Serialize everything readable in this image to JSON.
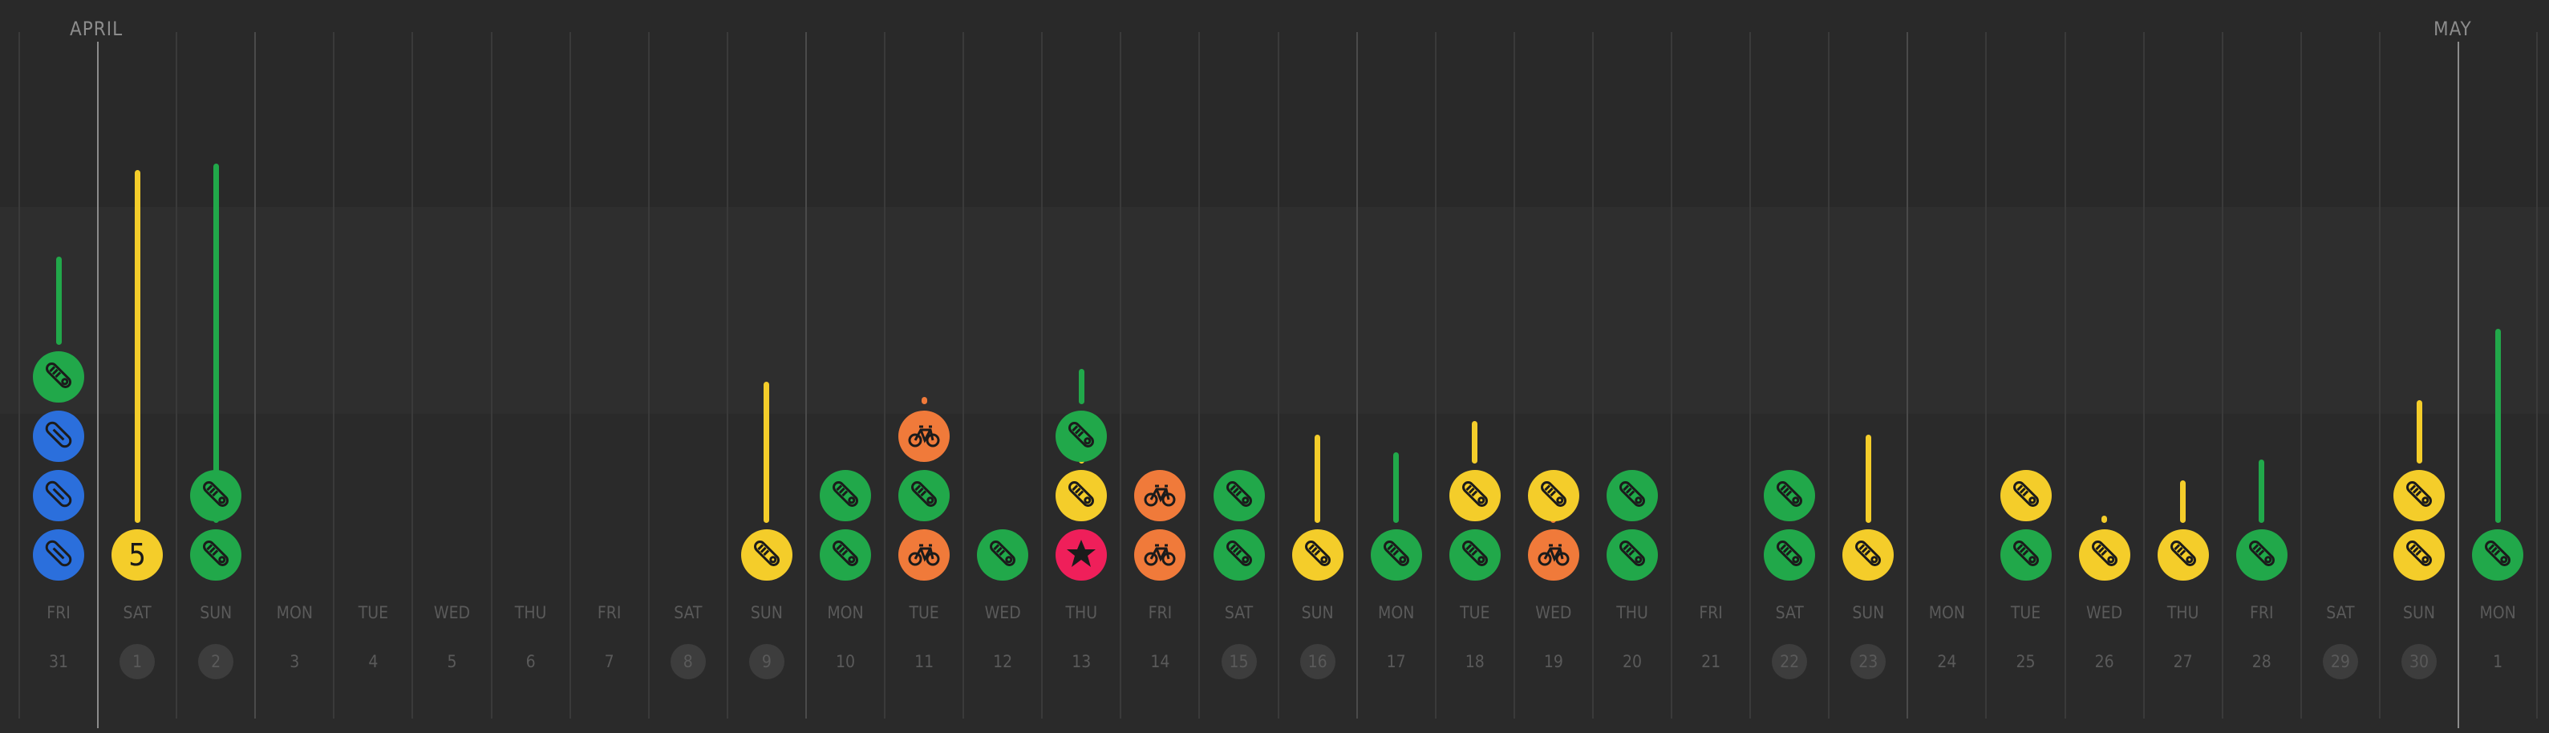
{
  "months": [
    {
      "label": "APRIL"
    },
    {
      "label": "MAY"
    }
  ],
  "colors": {
    "green": "#21a84a",
    "blue": "#2b6fdc",
    "yellow": "#f4cd2a",
    "orange": "#f07a3a",
    "red": "#ef1f5a",
    "background": "#2a2a2a",
    "icon": "#1b1b1b"
  },
  "days": [
    {
      "dow": "FRI",
      "num": "31",
      "weekend": false,
      "acts": [
        {
          "type": "shoe",
          "color": "blue"
        },
        {
          "type": "shoe",
          "color": "blue"
        },
        {
          "type": "shoe",
          "color": "blue"
        },
        {
          "type": "shoe",
          "color": "green",
          "bar": 0.25
        }
      ]
    },
    {
      "dow": "SAT",
      "num": "1",
      "weekend": true,
      "acts": [
        {
          "type": "number",
          "label": "5",
          "color": "yellow",
          "bar": 1.0
        }
      ]
    },
    {
      "dow": "SUN",
      "num": "2",
      "weekend": true,
      "acts": [
        {
          "type": "shoe",
          "color": "green",
          "bar": 0.75,
          "gap": true
        },
        {
          "type": "shoe",
          "color": "green",
          "bar": 0.85
        }
      ]
    },
    {
      "dow": "MON",
      "num": "3",
      "weekend": false,
      "acts": []
    },
    {
      "dow": "TUE",
      "num": "4",
      "weekend": false,
      "acts": []
    },
    {
      "dow": "WED",
      "num": "5",
      "weekend": false,
      "acts": []
    },
    {
      "dow": "THU",
      "num": "6",
      "weekend": false,
      "acts": []
    },
    {
      "dow": "FRI",
      "num": "7",
      "weekend": false,
      "acts": []
    },
    {
      "dow": "SAT",
      "num": "8",
      "weekend": true,
      "acts": []
    },
    {
      "dow": "SUN",
      "num": "9",
      "weekend": true,
      "acts": [
        {
          "type": "shoe",
          "color": "yellow",
          "bar": 0.4
        }
      ]
    },
    {
      "dow": "MON",
      "num": "10",
      "weekend": false,
      "acts": [
        {
          "type": "shoe",
          "color": "green"
        },
        {
          "type": "shoe",
          "color": "green"
        }
      ]
    },
    {
      "dow": "TUE",
      "num": "11",
      "weekend": false,
      "acts": [
        {
          "type": "bike",
          "color": "orange"
        },
        {
          "type": "shoe",
          "color": "green"
        },
        {
          "type": "bike",
          "color": "orange",
          "bar": 0.02
        }
      ]
    },
    {
      "dow": "WED",
      "num": "12",
      "weekend": false,
      "acts": [
        {
          "type": "shoe",
          "color": "green"
        }
      ]
    },
    {
      "dow": "THU",
      "num": "13",
      "weekend": false,
      "acts": [
        {
          "type": "star",
          "color": "red"
        },
        {
          "type": "shoe",
          "color": "yellow",
          "bar": 0.05
        },
        {
          "type": "shoe",
          "color": "green",
          "bar": 0.1
        }
      ]
    },
    {
      "dow": "FRI",
      "num": "14",
      "weekend": false,
      "acts": [
        {
          "type": "bike",
          "color": "orange"
        },
        {
          "type": "bike",
          "color": "orange"
        }
      ]
    },
    {
      "dow": "SAT",
      "num": "15",
      "weekend": true,
      "acts": [
        {
          "type": "shoe",
          "color": "green"
        },
        {
          "type": "shoe",
          "color": "green"
        }
      ]
    },
    {
      "dow": "SUN",
      "num": "16",
      "weekend": true,
      "acts": [
        {
          "type": "shoe",
          "color": "yellow",
          "bar": 0.25
        }
      ]
    },
    {
      "dow": "MON",
      "num": "17",
      "weekend": false,
      "acts": [
        {
          "type": "shoe",
          "color": "green",
          "bar": 0.2
        }
      ]
    },
    {
      "dow": "TUE",
      "num": "18",
      "weekend": false,
      "acts": [
        {
          "type": "shoe",
          "color": "green"
        },
        {
          "type": "shoe",
          "color": "yellow",
          "bar": 0.12
        }
      ]
    },
    {
      "dow": "WED",
      "num": "19",
      "weekend": false,
      "acts": [
        {
          "type": "bike",
          "color": "orange",
          "bar": 0.12
        },
        {
          "type": "shoe",
          "color": "yellow"
        }
      ]
    },
    {
      "dow": "THU",
      "num": "20",
      "weekend": false,
      "acts": [
        {
          "type": "shoe",
          "color": "green"
        },
        {
          "type": "shoe",
          "color": "green"
        }
      ]
    },
    {
      "dow": "FRI",
      "num": "21",
      "weekend": false,
      "acts": []
    },
    {
      "dow": "SAT",
      "num": "22",
      "weekend": true,
      "acts": [
        {
          "type": "shoe",
          "color": "green"
        },
        {
          "type": "shoe",
          "color": "green"
        }
      ]
    },
    {
      "dow": "SUN",
      "num": "23",
      "weekend": true,
      "acts": [
        {
          "type": "shoe",
          "color": "yellow",
          "bar": 0.25
        }
      ]
    },
    {
      "dow": "MON",
      "num": "24",
      "weekend": false,
      "acts": []
    },
    {
      "dow": "TUE",
      "num": "25",
      "weekend": false,
      "acts": [
        {
          "type": "shoe",
          "color": "green"
        },
        {
          "type": "shoe",
          "color": "yellow"
        }
      ]
    },
    {
      "dow": "WED",
      "num": "26",
      "weekend": false,
      "acts": [
        {
          "type": "shoe",
          "color": "yellow",
          "bar": 0.02
        }
      ]
    },
    {
      "dow": "THU",
      "num": "27",
      "weekend": false,
      "acts": [
        {
          "type": "shoe",
          "color": "yellow",
          "bar": 0.12
        }
      ]
    },
    {
      "dow": "FRI",
      "num": "28",
      "weekend": false,
      "acts": [
        {
          "type": "shoe",
          "color": "green",
          "bar": 0.18
        }
      ]
    },
    {
      "dow": "SAT",
      "num": "29",
      "weekend": true,
      "acts": []
    },
    {
      "dow": "SUN",
      "num": "30",
      "weekend": true,
      "acts": [
        {
          "type": "shoe",
          "color": "yellow"
        },
        {
          "type": "shoe",
          "color": "yellow",
          "bar": 0.18
        }
      ]
    },
    {
      "dow": "MON",
      "num": "1",
      "weekend": false,
      "acts": [
        {
          "type": "shoe",
          "color": "green",
          "bar": 0.55
        }
      ]
    }
  ]
}
